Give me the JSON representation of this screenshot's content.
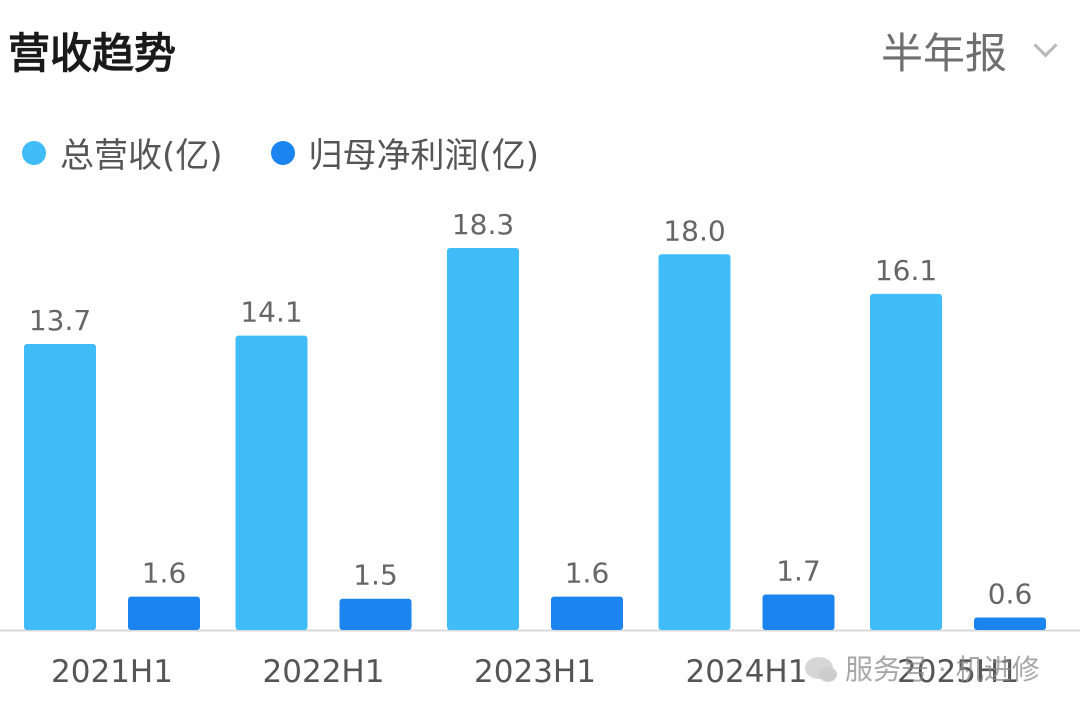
{
  "header": {
    "title": "营收趋势",
    "period": "半年报"
  },
  "colors": {
    "revenue": "#40bdf8",
    "profit": "#1b84ef",
    "text": "#666666",
    "axis": "#d9d9d9"
  },
  "icons": {
    "period_dropdown": "chevron-down-icon",
    "watermark": "wechat-icon"
  },
  "watermark": {
    "text": "服务号 · 机进修"
  },
  "chart_data": {
    "type": "bar",
    "categories": [
      "2021H1",
      "2022H1",
      "2023H1",
      "2024H1",
      "2025H1"
    ],
    "series": [
      {
        "name": "总营收(亿)",
        "values": [
          13.7,
          14.1,
          18.3,
          18.0,
          16.1
        ]
      },
      {
        "name": "归母净利润(亿)",
        "values": [
          1.6,
          1.5,
          1.6,
          1.7,
          0.6
        ]
      }
    ],
    "ylim": [
      0,
      18.3
    ],
    "legend": "top-left",
    "grid": false,
    "data_labels": true
  }
}
